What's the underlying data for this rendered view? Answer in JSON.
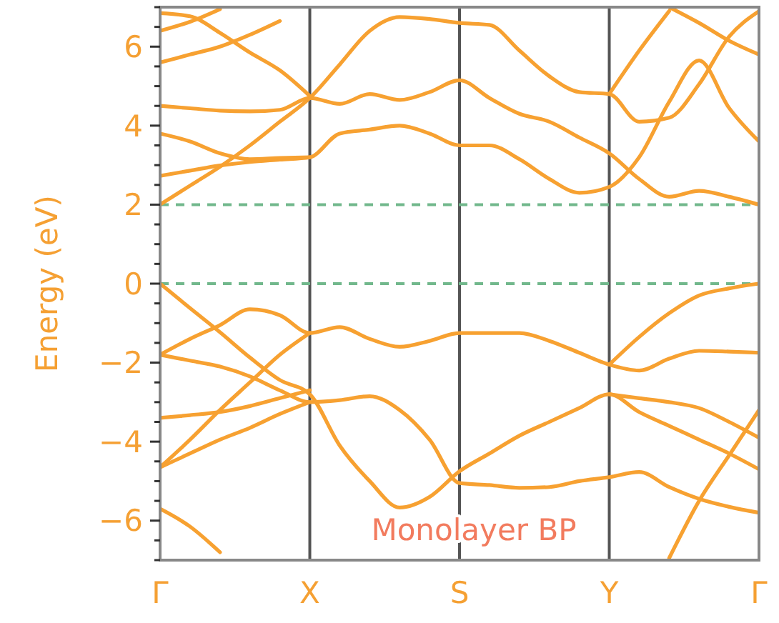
{
  "chart_data": {
    "type": "line",
    "ylabel": "Energy (eV)",
    "ylim": [
      -7,
      7
    ],
    "categories": [
      "Γ",
      null,
      null,
      null,
      null,
      "X",
      null,
      null,
      null,
      null,
      "S",
      null,
      null,
      null,
      null,
      "Y",
      null,
      null,
      null,
      null,
      "Γ"
    ],
    "yticks": [
      {
        "value": -7,
        "label": null
      },
      {
        "value": -6.5,
        "label": null
      },
      {
        "value": -6,
        "label": "−6"
      },
      {
        "value": -5.5,
        "label": null
      },
      {
        "value": -5,
        "label": null
      },
      {
        "value": -4.5,
        "label": null
      },
      {
        "value": -4,
        "label": "−4"
      },
      {
        "value": -3.5,
        "label": null
      },
      {
        "value": -3,
        "label": null
      },
      {
        "value": -2.5,
        "label": null
      },
      {
        "value": -2,
        "label": "−2"
      },
      {
        "value": -1.5,
        "label": null
      },
      {
        "value": -1,
        "label": null
      },
      {
        "value": -0.5,
        "label": null
      },
      {
        "value": 0,
        "label": "0"
      },
      {
        "value": 0.5,
        "label": null
      },
      {
        "value": 1,
        "label": null
      },
      {
        "value": 1.5,
        "label": null
      },
      {
        "value": 2,
        "label": "2"
      },
      {
        "value": 2.5,
        "label": null
      },
      {
        "value": 3,
        "label": null
      },
      {
        "value": 3.5,
        "label": null
      },
      {
        "value": 4,
        "label": "4"
      },
      {
        "value": 4.5,
        "label": null
      },
      {
        "value": 5,
        "label": null
      },
      {
        "value": 5.5,
        "label": null
      },
      {
        "value": 6,
        "label": "6"
      },
      {
        "value": 6.5,
        "label": null
      },
      {
        "value": 7,
        "label": null
      }
    ],
    "grid": "x",
    "marker": "none",
    "line_style": "solid",
    "ref_lines": [
      {
        "axis": "y",
        "value": 2,
        "color": "#72b88c",
        "line_style": "dashed"
      },
      {
        "axis": "y",
        "value": 0,
        "color": "#72b88c",
        "line_style": "dashed"
      }
    ],
    "annotations": [
      "Monolayer BP"
    ],
    "series": [
      {
        "color": "#f7a131",
        "values": [
          2.0,
          2.48,
          2.96,
          3.5,
          4.1,
          4.7,
          5.55,
          6.4,
          6.75,
          6.7,
          6.6,
          6.55,
          5.9,
          5.25,
          4.85,
          4.8,
          4.1,
          4.2,
          5.05,
          6.25,
          6.9
        ]
      },
      {
        "color": "#f7a131",
        "values": [
          2.73,
          2.86,
          2.99,
          3.08,
          3.14,
          3.2,
          3.8,
          3.9,
          4.0,
          3.8,
          3.5,
          3.5,
          3.15,
          2.65,
          2.3,
          2.45,
          3.2,
          4.6,
          5.65,
          4.45,
          3.6
        ]
      },
      {
        "color": "#f7a131",
        "values": [
          3.8,
          3.6,
          3.3,
          3.15,
          3.18,
          3.2,
          null,
          null,
          null,
          null,
          null,
          null,
          null,
          null,
          null,
          null,
          null,
          null,
          null,
          null,
          null
        ]
      },
      {
        "color": "#f7a131",
        "values": [
          4.5,
          4.44,
          4.38,
          4.36,
          4.4,
          4.7,
          4.55,
          4.8,
          4.65,
          4.85,
          5.15,
          4.7,
          4.3,
          4.1,
          3.7,
          3.3,
          2.65,
          2.2,
          2.35,
          2.2,
          2.0
        ]
      },
      {
        "color": "#f7a131",
        "values": [
          5.6,
          5.8,
          6.0,
          6.3,
          6.65,
          null,
          null,
          null,
          null,
          null,
          null,
          null,
          null,
          null,
          null,
          null,
          null,
          null,
          null,
          null,
          null
        ]
      },
      {
        "color": "#f7a131",
        "values": [
          6.4,
          6.63,
          6.95,
          null,
          null,
          null,
          null,
          null,
          null,
          null,
          null,
          null,
          null,
          null,
          null,
          null,
          null,
          null,
          null,
          null,
          null
        ]
      },
      {
        "color": "#f7a131",
        "values": [
          6.85,
          6.77,
          6.35,
          5.85,
          5.4,
          4.75,
          null,
          null,
          null,
          null,
          null,
          null,
          null,
          null,
          null,
          null,
          null,
          null,
          null,
          null,
          null
        ]
      },
      {
        "color": "#f7a131",
        "values": [
          null,
          null,
          null,
          null,
          null,
          null,
          null,
          null,
          null,
          null,
          null,
          null,
          null,
          null,
          null,
          4.8,
          5.9,
          6.9,
          null,
          null,
          null
        ]
      },
      {
        "color": "#f7a131",
        "values": [
          null,
          null,
          null,
          null,
          null,
          null,
          null,
          null,
          null,
          null,
          null,
          null,
          null,
          null,
          null,
          null,
          null,
          7.0,
          6.6,
          6.15,
          5.8
        ]
      },
      {
        "color": "#f7a131",
        "values": [
          0,
          -0.62,
          -1.23,
          -1.87,
          -2.44,
          -2.8,
          -4.1,
          -5.0,
          -5.67,
          -5.4,
          -4.75,
          -4.3,
          -3.85,
          -3.5,
          -3.15,
          -2.8,
          -3.25,
          -3.6,
          -3.95,
          -4.3,
          -4.7
        ]
      },
      {
        "color": "#f7a131",
        "values": [
          -1.8,
          -1.4,
          -1.05,
          -0.65,
          -0.8,
          -1.25,
          -1.1,
          -1.4,
          -1.6,
          -1.45,
          -1.25,
          -1.25,
          -1.25,
          -1.45,
          -1.75,
          -2.05,
          -2.2,
          -1.9,
          -1.7,
          -1.72,
          -1.75
        ]
      },
      {
        "color": "#f7a131",
        "values": [
          -1.8,
          -1.95,
          -2.1,
          -2.35,
          -2.7,
          -3.0,
          -2.95,
          -2.85,
          -3.2,
          -3.95,
          -5.05,
          -5.1,
          -5.17,
          -5.15,
          -5.0,
          -4.9,
          -4.77,
          -5.15,
          -5.45,
          -5.65,
          -5.8
        ]
      },
      {
        "color": "#f7a131",
        "values": [
          -3.4,
          -3.33,
          -3.25,
          -3.1,
          -2.9,
          -2.7,
          null,
          null,
          null,
          null,
          null,
          null,
          null,
          null,
          null,
          null,
          null,
          null,
          null,
          null,
          null
        ]
      },
      {
        "color": "#f7a131",
        "values": [
          -4.65,
          -3.95,
          -3.2,
          -2.5,
          -1.8,
          -1.25,
          null,
          null,
          null,
          null,
          null,
          null,
          null,
          null,
          null,
          null,
          null,
          null,
          null,
          null,
          null
        ]
      },
      {
        "color": "#f7a131",
        "values": [
          -4.65,
          -4.3,
          -3.95,
          -3.65,
          -3.3,
          -3.0,
          null,
          null,
          null,
          null,
          null,
          null,
          null,
          null,
          null,
          null,
          null,
          null,
          null,
          null,
          null
        ]
      },
      {
        "color": "#f7a131",
        "values": [
          -5.7,
          -6.15,
          -6.8,
          null,
          null,
          null,
          null,
          null,
          null,
          null,
          null,
          null,
          null,
          null,
          null,
          null,
          null,
          null,
          null,
          null,
          null
        ]
      },
      {
        "color": "#f7a131",
        "values": [
          null,
          null,
          null,
          null,
          null,
          null,
          null,
          null,
          null,
          null,
          null,
          null,
          null,
          null,
          null,
          -2.05,
          -1.35,
          -0.75,
          -0.3,
          -0.12,
          0
        ]
      },
      {
        "color": "#f7a131",
        "values": [
          null,
          null,
          null,
          null,
          null,
          null,
          null,
          null,
          null,
          null,
          null,
          null,
          null,
          null,
          null,
          null,
          null,
          -6.95,
          -5.5,
          -4.35,
          -3.2
        ]
      },
      {
        "color": "#f7a131",
        "values": [
          null,
          null,
          null,
          null,
          null,
          null,
          null,
          null,
          null,
          null,
          null,
          null,
          null,
          null,
          null,
          -2.8,
          -2.9,
          -3.0,
          -3.15,
          -3.5,
          -3.9
        ]
      }
    ]
  }
}
